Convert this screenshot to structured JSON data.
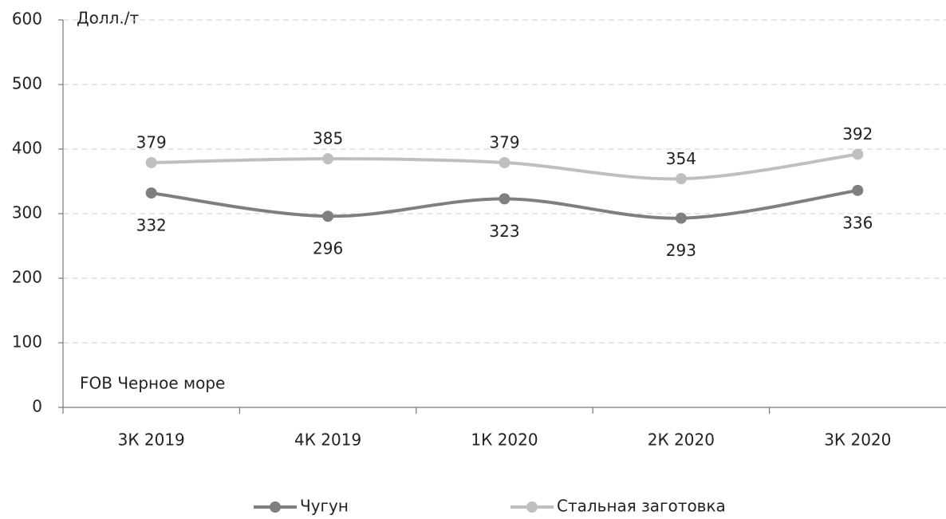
{
  "chart_data": {
    "type": "line",
    "y_label": "Долл./т",
    "annotation": "FOB Черное море",
    "categories": [
      "3К 2019",
      "4К 2019",
      "1К 2020",
      "2К 2020",
      "3К 2020"
    ],
    "series": [
      {
        "name": "Чугун",
        "color": "#7f7f7f",
        "values": [
          332,
          296,
          323,
          293,
          336
        ]
      },
      {
        "name": "Стальная заготовка",
        "color": "#bfbfbf",
        "values": [
          379,
          385,
          379,
          354,
          392
        ]
      }
    ],
    "ylim": [
      0,
      600
    ],
    "yticks": [
      0,
      100,
      200,
      300,
      400,
      500,
      600
    ],
    "grid": true,
    "legend": "bottom"
  }
}
